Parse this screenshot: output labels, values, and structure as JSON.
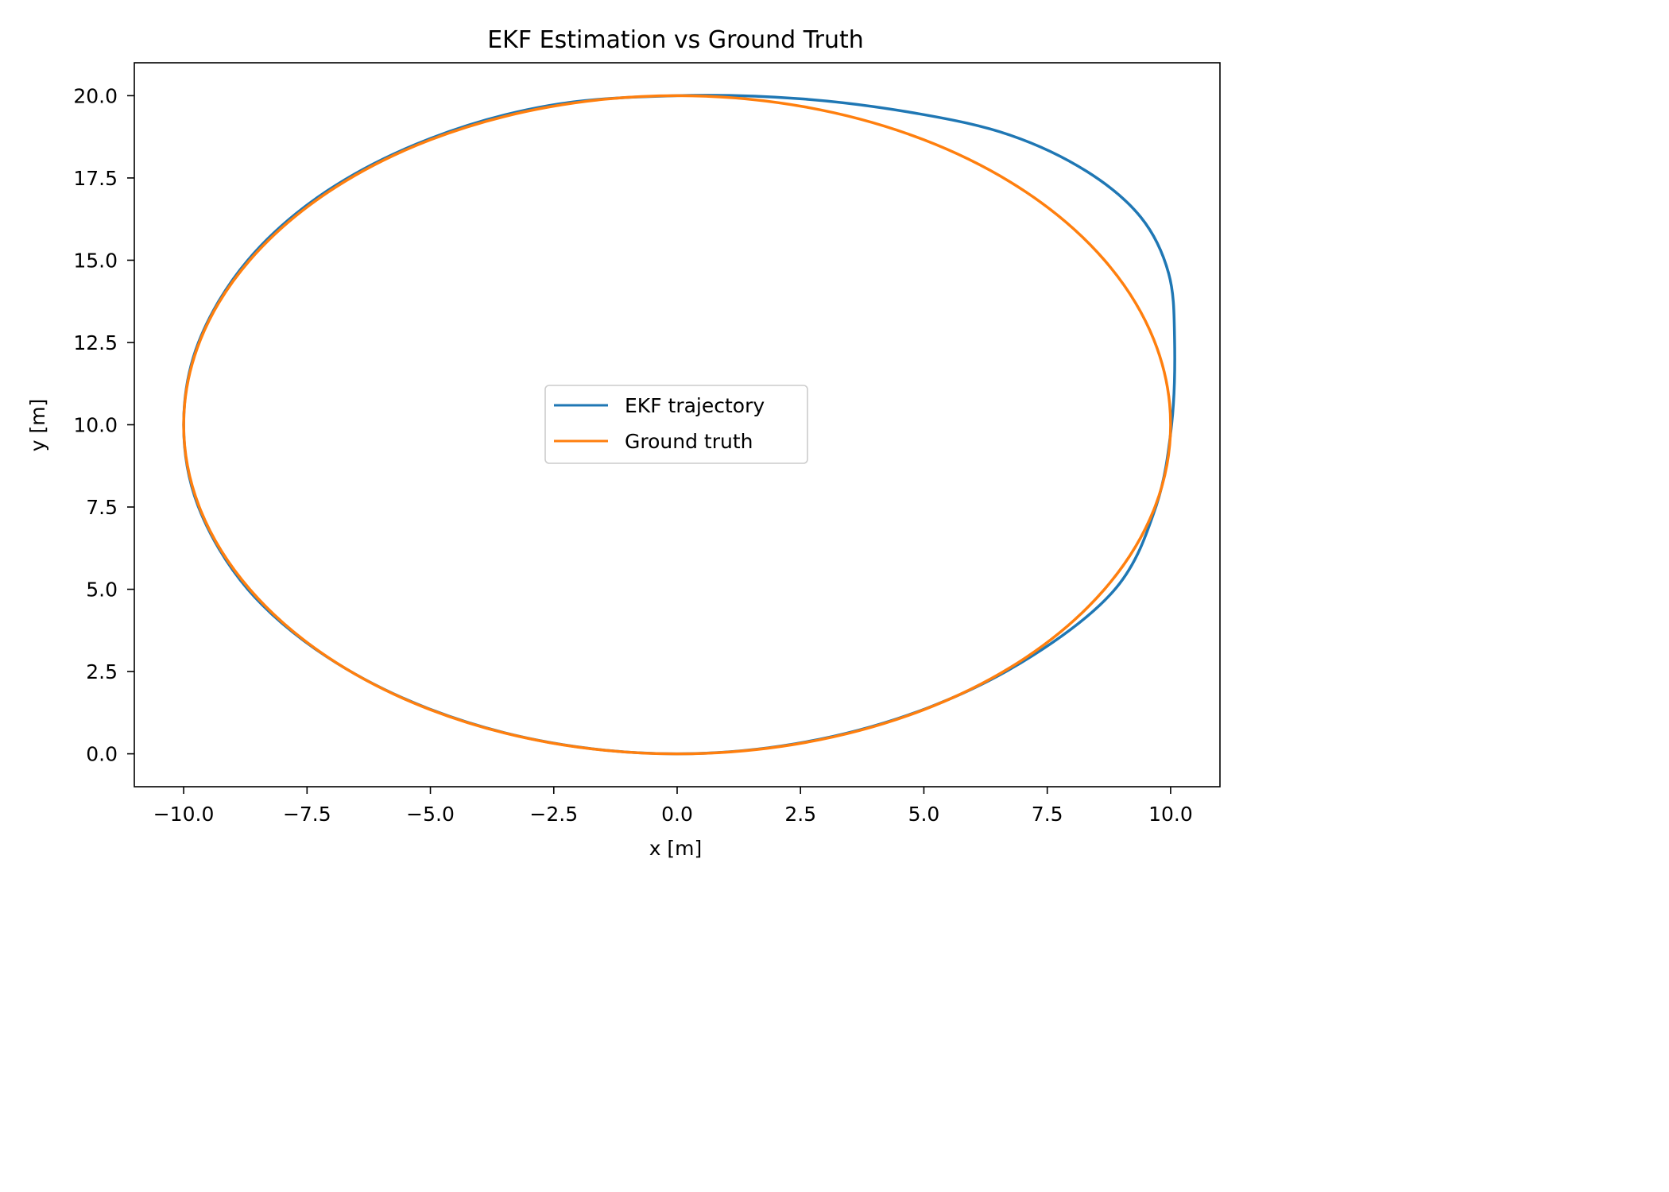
{
  "chart_data": {
    "type": "line",
    "title": "EKF Estimation vs Ground Truth",
    "xlabel": "x [m]",
    "ylabel": "y [m]",
    "xlim": [
      -11.0,
      11.0
    ],
    "ylim": [
      -1.0,
      21.0
    ],
    "xticks": [
      -10.0,
      -7.5,
      -5.0,
      -2.5,
      0.0,
      2.5,
      5.0,
      7.5,
      10.0
    ],
    "xtick_labels": [
      "−10.0",
      "−7.5",
      "−5.0",
      "−2.5",
      "0.0",
      "2.5",
      "5.0",
      "7.5",
      "10.0"
    ],
    "yticks": [
      0.0,
      2.5,
      5.0,
      7.5,
      10.0,
      12.5,
      15.0,
      17.5,
      20.0
    ],
    "ytick_labels": [
      "0.0",
      "2.5",
      "5.0",
      "7.5",
      "10.0",
      "12.5",
      "15.0",
      "17.5",
      "20.0"
    ],
    "grid": false,
    "legend_position": "center",
    "series": [
      {
        "name": "EKF trajectory",
        "color": "#1f77b4",
        "x": [
          0.0,
          2.6,
          5.05,
          7.2,
          8.9,
          9.7,
          10.02,
          10.08,
          9.96,
          9.4,
          8.3,
          6.75,
          4.9,
          2.55,
          0.0,
          -2.6,
          -5.0,
          -7.1,
          -8.7,
          -9.7,
          -10.0,
          -9.7,
          -8.7,
          -7.1,
          -5.0,
          -2.6,
          0.0
        ],
        "y": [
          0.0,
          0.36,
          1.38,
          2.98,
          5.05,
          7.5,
          10.0,
          12.6,
          14.6,
          16.3,
          17.7,
          18.8,
          19.45,
          19.9,
          20.0,
          19.7,
          18.7,
          17.1,
          15.0,
          12.5,
          10.0,
          7.5,
          5.0,
          2.95,
          1.35,
          0.35,
          0.0
        ]
      },
      {
        "name": "Ground truth",
        "color": "#ff7f0e",
        "x": [
          0.0,
          2.588,
          5.0,
          7.071,
          8.66,
          9.659,
          10.0,
          9.659,
          8.66,
          7.071,
          5.0,
          2.588,
          0.0,
          -2.588,
          -5.0,
          -7.071,
          -8.66,
          -9.659,
          -10.0,
          -9.659,
          -8.66,
          -7.071,
          -5.0,
          -2.588,
          0.0
        ],
        "y": [
          0.0,
          0.341,
          1.34,
          2.929,
          5.0,
          7.412,
          10.0,
          12.588,
          15.0,
          17.071,
          18.66,
          19.659,
          20.0,
          19.659,
          18.66,
          17.071,
          15.0,
          12.588,
          10.0,
          7.412,
          5.0,
          2.929,
          1.34,
          0.341,
          0.0
        ]
      }
    ]
  }
}
